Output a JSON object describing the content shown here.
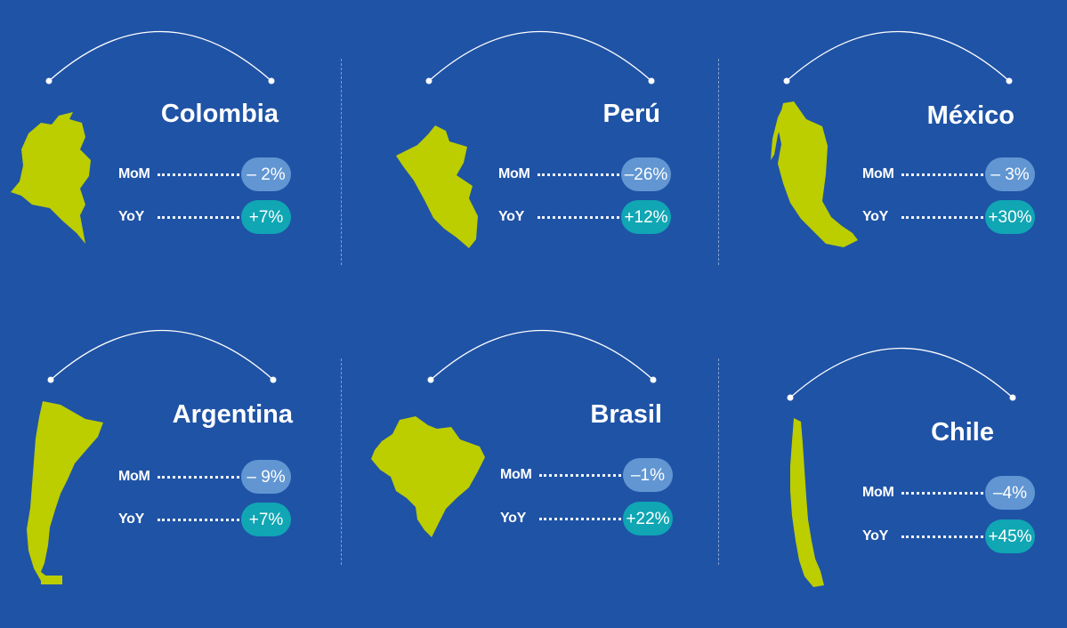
{
  "colors": {
    "background": "#1f53a6",
    "map_fill": "#bccd00",
    "mom_pill": "#6196d2",
    "yoy_pill": "#10a6b4",
    "text": "#ffffff"
  },
  "metric_labels": {
    "mom": "MoM",
    "yoy": "YoY"
  },
  "countries": [
    {
      "name": "Colombia",
      "map_icon": "colombia-map-icon",
      "mom": "– 2%",
      "yoy": "+7%"
    },
    {
      "name": "Perú",
      "map_icon": "peru-map-icon",
      "mom": "–26%",
      "yoy": "+12%"
    },
    {
      "name": "México",
      "map_icon": "mexico-map-icon",
      "mom": "– 3%",
      "yoy": "+30%"
    },
    {
      "name": "Argentina",
      "map_icon": "argentina-map-icon",
      "mom": "– 9%",
      "yoy": "+7%"
    },
    {
      "name": "Brasil",
      "map_icon": "brasil-map-icon",
      "mom": "–1%",
      "yoy": "+22%"
    },
    {
      "name": "Chile",
      "map_icon": "chile-map-icon",
      "mom": "–4%",
      "yoy": "+45%"
    }
  ]
}
